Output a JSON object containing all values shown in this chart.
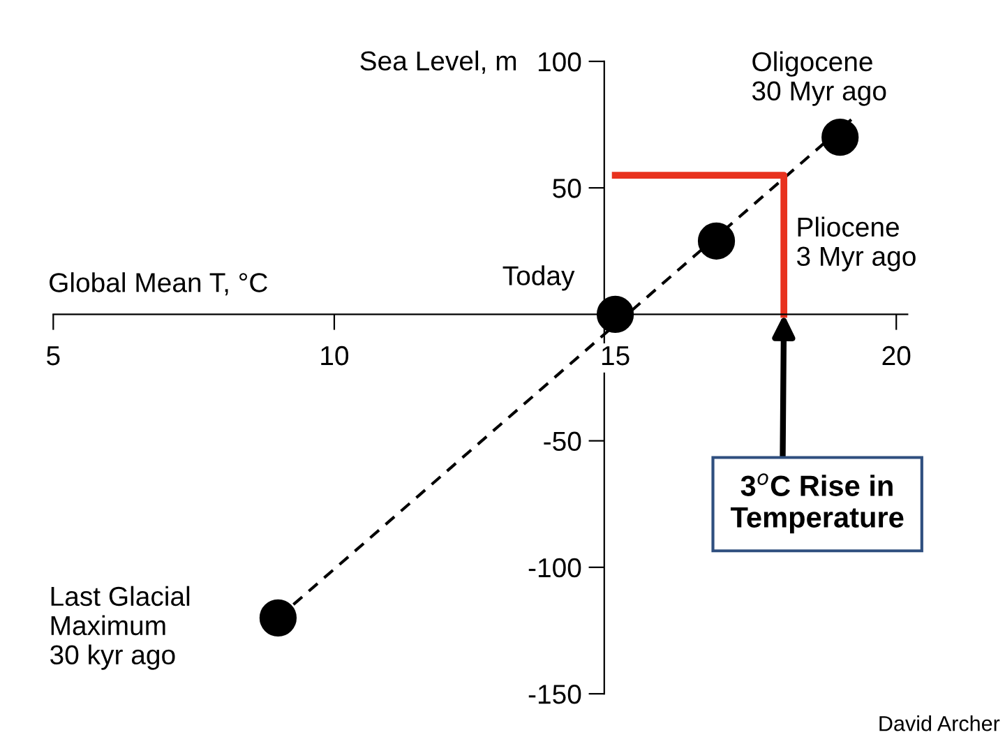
{
  "chart_data": {
    "type": "scatter",
    "xlabel": "Global Mean T, °C",
    "ylabel": "Sea Level, m",
    "xlim": [
      5,
      20.2
    ],
    "ylim": [
      -150,
      100
    ],
    "xticks": [
      5,
      10,
      15,
      20
    ],
    "yticks": [
      -150,
      -100,
      -50,
      50,
      100
    ],
    "grid": false,
    "legend": false,
    "series": [
      {
        "type": "line",
        "x": [
          9,
          19.2
        ],
        "values": [
          -120,
          77
        ],
        "color": "#000000",
        "line_style": "dashed"
      },
      {
        "type": "line",
        "x": [
          15,
          18,
          18
        ],
        "values": [
          55,
          55,
          0
        ],
        "color": "#e8321e",
        "line_style": "solid"
      },
      {
        "x": [
          9,
          15,
          16.8,
          19
        ],
        "values": [
          -120,
          0,
          29,
          70
        ],
        "color": "#000000",
        "marker": "circle"
      }
    ],
    "annotations": [
      {
        "text": "Oligocene\n30 Myr ago",
        "x": 19,
        "y": 70
      },
      "Pliocene\n3 Myr ago",
      {
        "text": "Today",
        "x": 15,
        "y": 0
      },
      "Last Glacial\nMaximum\n30 kyr ago",
      {
        "text": "3$^{o}$C Rise in\nTemperature",
        "x": 18,
        "y": 0
      },
      "David Archer"
    ]
  }
}
